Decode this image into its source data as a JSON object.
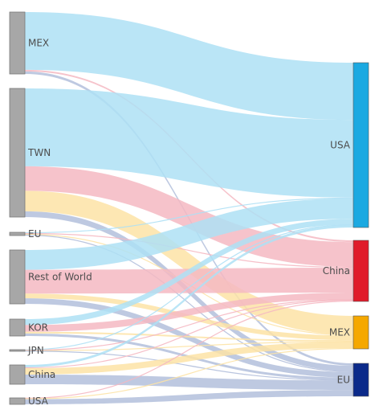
{
  "chart_data": {
    "type": "sankey",
    "sources": [
      {
        "id": "MEX",
        "label": "MEX"
      },
      {
        "id": "TWN",
        "label": "TWN"
      },
      {
        "id": "EU_src",
        "label": "EU"
      },
      {
        "id": "ROW",
        "label": "Rest of World"
      },
      {
        "id": "KOR",
        "label": "KOR"
      },
      {
        "id": "JPN",
        "label": "JPN"
      },
      {
        "id": "China_src",
        "label": "China"
      },
      {
        "id": "USA_src",
        "label": "USA"
      }
    ],
    "targets": [
      {
        "id": "USA_tgt",
        "label": "USA",
        "color": "#1ba9e1"
      },
      {
        "id": "China_tgt",
        "label": "China",
        "color": "#e01b2a"
      },
      {
        "id": "MEX_tgt",
        "label": "MEX",
        "color": "#f5a800"
      },
      {
        "id": "EU_tgt",
        "label": "EU",
        "color": "#0b2a8a"
      }
    ],
    "flows": [
      {
        "source": "MEX",
        "target": "USA_tgt",
        "value": 70
      },
      {
        "source": "MEX",
        "target": "China_tgt",
        "value": 2
      },
      {
        "source": "MEX",
        "target": "EU_tgt",
        "value": 3
      },
      {
        "source": "TWN",
        "target": "USA_tgt",
        "value": 95
      },
      {
        "source": "TWN",
        "target": "China_tgt",
        "value": 30
      },
      {
        "source": "TWN",
        "target": "MEX_tgt",
        "value": 25
      },
      {
        "source": "TWN",
        "target": "EU_tgt",
        "value": 7
      },
      {
        "source": "EU_src",
        "target": "USA_tgt",
        "value": 1
      },
      {
        "source": "EU_src",
        "target": "China_tgt",
        "value": 1
      },
      {
        "source": "EU_src",
        "target": "MEX_tgt",
        "value": 1
      },
      {
        "source": "EU_src",
        "target": "EU_tgt",
        "value": 1
      },
      {
        "source": "ROW",
        "target": "USA_tgt",
        "value": 25
      },
      {
        "source": "ROW",
        "target": "China_tgt",
        "value": 30
      },
      {
        "source": "ROW",
        "target": "MEX_tgt",
        "value": 6
      },
      {
        "source": "ROW",
        "target": "EU_tgt",
        "value": 7
      },
      {
        "source": "KOR",
        "target": "USA_tgt",
        "value": 7
      },
      {
        "source": "KOR",
        "target": "China_tgt",
        "value": 8
      },
      {
        "source": "KOR",
        "target": "MEX_tgt",
        "value": 2
      },
      {
        "source": "KOR",
        "target": "EU_tgt",
        "value": 3
      },
      {
        "source": "JPN",
        "target": "USA_tgt",
        "value": 0.6
      },
      {
        "source": "JPN",
        "target": "China_tgt",
        "value": 0.6
      },
      {
        "source": "JPN",
        "target": "MEX_tgt",
        "value": 0.6
      },
      {
        "source": "JPN",
        "target": "EU_tgt",
        "value": 0.6
      },
      {
        "source": "China_src",
        "target": "USA_tgt",
        "value": 3
      },
      {
        "source": "China_src",
        "target": "China_tgt",
        "value": 1
      },
      {
        "source": "China_src",
        "target": "MEX_tgt",
        "value": 8
      },
      {
        "source": "China_src",
        "target": "EU_tgt",
        "value": 12
      },
      {
        "source": "USA_src",
        "target": "China_tgt",
        "value": 1
      },
      {
        "source": "USA_src",
        "target": "MEX_tgt",
        "value": 1
      },
      {
        "source": "USA_src",
        "target": "EU_tgt",
        "value": 8
      }
    ]
  },
  "colors": {
    "source_node": "#a7a7a7",
    "source_node_stroke": "#7a7a7a",
    "flow_to_usa": "#aee0f5",
    "flow_to_china": "#f5b8c2",
    "flow_to_mex": "#fde3a6",
    "flow_to_eu": "#b3bfdc"
  }
}
